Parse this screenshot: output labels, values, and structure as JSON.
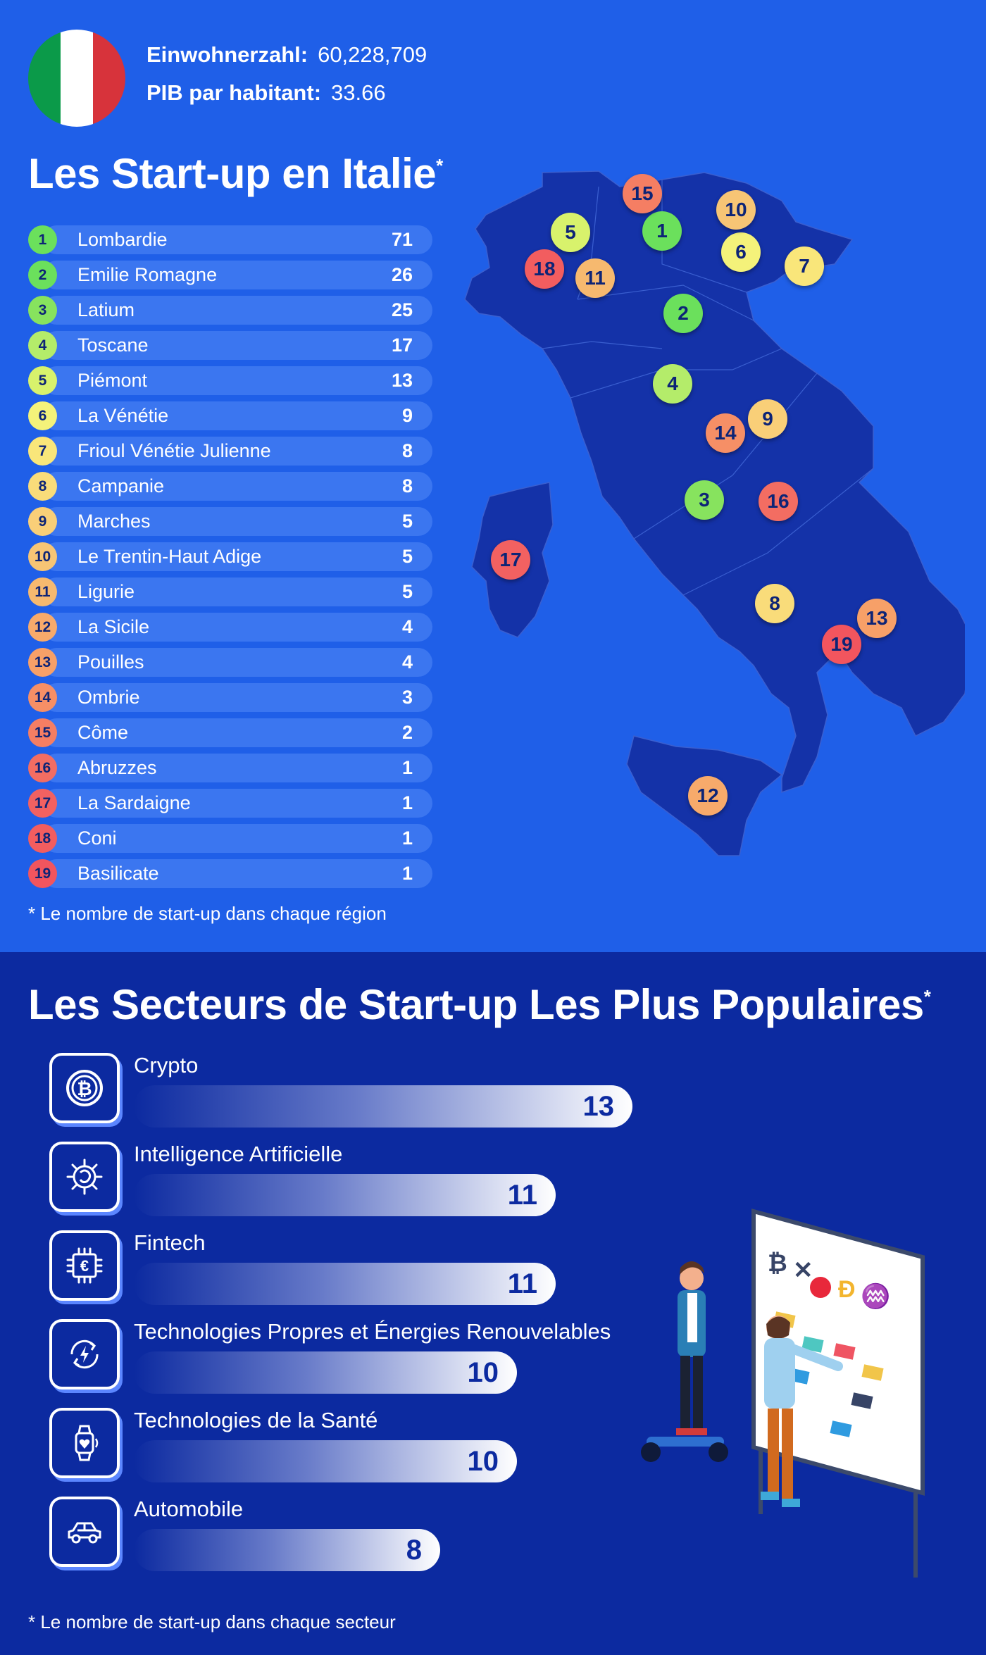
{
  "country": {
    "population_label": "Einwohnerzahl:",
    "population_value": "60,228,709",
    "gdp_label": "PIB par habitant:",
    "gdp_value": "33.66",
    "flag_colors": [
      "#0b9a49",
      "#ffffff",
      "#d7333b"
    ]
  },
  "regions_section": {
    "title": "Les Start-up en Italie",
    "title_mark": "*",
    "footnote": "* Le nombre de start-up dans chaque région",
    "rows": [
      {
        "rank": "1",
        "name": "Lombardie",
        "value": "71",
        "color": "#6be05c"
      },
      {
        "rank": "2",
        "name": "Emilie Romagne",
        "value": "26",
        "color": "#6be05c"
      },
      {
        "rank": "3",
        "name": "Latium",
        "value": "25",
        "color": "#87e35e"
      },
      {
        "rank": "4",
        "name": "Toscane",
        "value": "17",
        "color": "#b4ec6a"
      },
      {
        "rank": "5",
        "name": "Piémont",
        "value": "13",
        "color": "#d8f26c"
      },
      {
        "rank": "6",
        "name": "La Vénétie",
        "value": "9",
        "color": "#f4f27a"
      },
      {
        "rank": "7",
        "name": "Frioul Vénétie Julienne",
        "value": "8",
        "color": "#f9e67a"
      },
      {
        "rank": "8",
        "name": "Campanie",
        "value": "8",
        "color": "#f9dc7a"
      },
      {
        "rank": "9",
        "name": "Marches",
        "value": "5",
        "color": "#f9cf78"
      },
      {
        "rank": "10",
        "name": "Le Trentin-Haut Adige",
        "value": "5",
        "color": "#f7c575"
      },
      {
        "rank": "11",
        "name": "Ligurie",
        "value": "5",
        "color": "#f6b96f"
      },
      {
        "rank": "12",
        "name": "La Sicile",
        "value": "4",
        "color": "#f7aa6b"
      },
      {
        "rank": "13",
        "name": "Pouilles",
        "value": "4",
        "color": "#f7a068"
      },
      {
        "rank": "14",
        "name": "Ombrie",
        "value": "3",
        "color": "#f68f66"
      },
      {
        "rank": "15",
        "name": "Côme",
        "value": "2",
        "color": "#f57e63"
      },
      {
        "rank": "16",
        "name": "Abruzzes",
        "value": "1",
        "color": "#f36d62"
      },
      {
        "rank": "17",
        "name": "La Sardaigne",
        "value": "1",
        "color": "#f26161"
      },
      {
        "rank": "18",
        "name": "Coni",
        "value": "1",
        "color": "#f25d5f"
      },
      {
        "rank": "19",
        "name": "Basilicate",
        "value": "1",
        "color": "#f2555e"
      }
    ]
  },
  "sectors_section": {
    "title": "Les Secteurs de Start-up Les Plus Populaires",
    "title_mark": "*",
    "footnote": "* Le nombre de start-up dans chaque secteur",
    "max_value": 13,
    "items": [
      {
        "label": "Crypto",
        "value": "13",
        "icon": "bitcoin-icon"
      },
      {
        "label": "Intelligence Artificielle",
        "value": "11",
        "icon": "ai-chip-icon"
      },
      {
        "label": "Fintech",
        "value": "11",
        "icon": "euro-chip-icon"
      },
      {
        "label": "Technologies Propres et Énergies Renouvelables",
        "value": "10",
        "icon": "renewable-energy-icon"
      },
      {
        "label": "Technologies de la Santé",
        "value": "10",
        "icon": "smartwatch-health-icon"
      },
      {
        "label": "Automobile",
        "value": "8",
        "icon": "car-icon"
      }
    ]
  }
}
